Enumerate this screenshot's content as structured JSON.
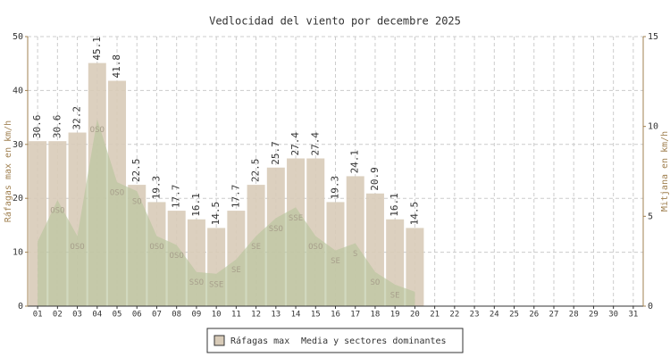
{
  "chart_data": {
    "type": "bar",
    "title": "Vedlocidad del viento por decembre 2025",
    "y_label": "Ráfagas max en km/h",
    "y2_label": "Mitjana en km/h",
    "categories": [
      "01",
      "02",
      "03",
      "04",
      "05",
      "06",
      "07",
      "08",
      "09",
      "10",
      "11",
      "12",
      "13",
      "14",
      "15",
      "16",
      "17",
      "18",
      "19",
      "20",
      "21",
      "22",
      "23",
      "24",
      "25",
      "26",
      "27",
      "28",
      "29",
      "30",
      "31"
    ],
    "series": [
      {
        "name": "Ráfagas max",
        "type": "bar",
        "color": "#d8cbb8",
        "values": [
          30.6,
          30.6,
          32.2,
          45.1,
          41.8,
          22.5,
          19.3,
          17.7,
          16.1,
          14.5,
          17.7,
          22.5,
          25.7,
          27.4,
          27.4,
          19.3,
          24.1,
          20.9,
          16.1,
          14.5,
          null,
          null,
          null,
          null,
          null,
          null,
          null,
          null,
          null,
          null,
          null
        ]
      },
      {
        "name": "Media y sectores dominantes",
        "type": "area",
        "axis": "y2",
        "color": "#b9c59c",
        "values": [
          3.6,
          5.9,
          3.9,
          10.4,
          6.9,
          6.4,
          3.9,
          3.4,
          1.9,
          1.8,
          2.6,
          3.9,
          4.9,
          5.5,
          3.9,
          3.1,
          3.5,
          1.9,
          1.2,
          0.8,
          null,
          null,
          null,
          null,
          null,
          null,
          null,
          null,
          null,
          null,
          null
        ],
        "direction_labels": [
          null,
          "OSO",
          "OSO",
          "OSO",
          "OSO",
          "SO",
          "OSO",
          "OSO",
          "SSO",
          "SSE",
          "SE",
          "SE",
          "SSO",
          "SSE",
          "OSO",
          "SE",
          "S",
          "SO",
          "SE",
          null,
          null,
          null,
          null,
          null,
          null,
          null,
          null,
          null,
          null,
          null,
          null
        ]
      }
    ],
    "ylim": [
      0,
      50
    ],
    "yticks": [
      0,
      10,
      20,
      30,
      40,
      50
    ],
    "y2lim": [
      0,
      15
    ],
    "y2ticks": [
      0,
      5,
      10,
      15
    ],
    "grid": true,
    "legend": "bottom"
  }
}
